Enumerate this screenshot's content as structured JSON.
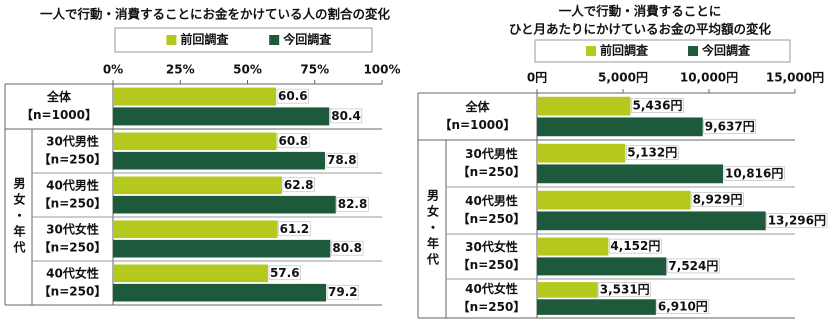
{
  "chart_data": [
    {
      "type": "bar",
      "orientation": "horizontal",
      "title": [
        "一人で行動・消費することにお金をかけている人の割合の変化"
      ],
      "categories": [
        "全体",
        "30代男性",
        "40代男性",
        "30代女性",
        "40代女性"
      ],
      "sample_sizes": [
        "【n=1000】",
        "【n=250】",
        "【n=250】",
        "【n=250】",
        "【n=250】"
      ],
      "group_label": "男女・年代",
      "series": [
        {
          "name": "前回調査",
          "color": "#b5c81e",
          "values": [
            60.6,
            60.8,
            62.8,
            61.2,
            57.6
          ]
        },
        {
          "name": "今回調査",
          "color": "#1d5a3b",
          "values": [
            80.4,
            78.8,
            82.8,
            80.8,
            79.2
          ]
        }
      ],
      "xlim": [
        0,
        100
      ],
      "xticks": [
        {
          "value": 0,
          "label": "0%"
        },
        {
          "value": 25,
          "label": "25%"
        },
        {
          "value": 50,
          "label": "50%"
        },
        {
          "value": 75,
          "label": "75%"
        },
        {
          "value": 100,
          "label": "100%"
        }
      ]
    },
    {
      "type": "bar",
      "orientation": "horizontal",
      "title": [
        "一人で行動・消費することに",
        "ひと月あたりにかけているお金の平均額の変化"
      ],
      "categories": [
        "全体",
        "30代男性",
        "40代男性",
        "30代女性",
        "40代女性"
      ],
      "sample_sizes": [
        "【n=1000】",
        "【n=250】",
        "【n=250】",
        "【n=250】",
        "【n=250】"
      ],
      "group_label": "男女・年代",
      "series": [
        {
          "name": "前回調査",
          "color": "#b5c81e",
          "values": [
            5436,
            5132,
            8929,
            4152,
            3531
          ],
          "value_labels": [
            "5,436円",
            "5,132円",
            "8,929円",
            "4,152円",
            "3,531円"
          ]
        },
        {
          "name": "今回調査",
          "color": "#1d5a3b",
          "values": [
            9637,
            10816,
            13296,
            7524,
            6910
          ],
          "value_labels": [
            "9,637円",
            "10,816円",
            "13,296円",
            "7,524円",
            "6,910円"
          ]
        }
      ],
      "xlim": [
        0,
        15000
      ],
      "xticks": [
        {
          "value": 0,
          "label": "0円"
        },
        {
          "value": 5000,
          "label": "5,000円"
        },
        {
          "value": 10000,
          "label": "10,000円"
        },
        {
          "value": 15000,
          "label": "15,000円"
        }
      ]
    }
  ]
}
